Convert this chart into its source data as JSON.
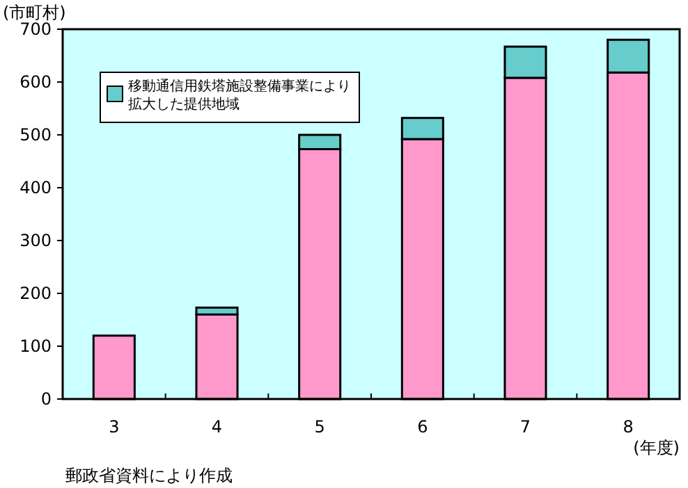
{
  "chart_data": {
    "type": "bar",
    "stacked": true,
    "ylabel": "(市町村)",
    "xlabel": "(年度)",
    "categories": [
      "3",
      "4",
      "5",
      "6",
      "7",
      "8"
    ],
    "series": [
      {
        "color": "#ff99cc",
        "values": [
          120,
          160,
          473,
          492,
          608,
          618
        ]
      },
      {
        "name": "移動通信用鉄塔施設整備事業により拡大した提供地域",
        "color": "#66cccc",
        "values": [
          0,
          13,
          27,
          40,
          59,
          62
        ]
      }
    ],
    "ylim": [
      0,
      700
    ],
    "yticks": [
      0,
      100,
      200,
      300,
      400,
      500,
      600,
      700
    ],
    "grid": false,
    "legend": "top left",
    "annotations": [
      "郵政省資料により作成"
    ]
  }
}
